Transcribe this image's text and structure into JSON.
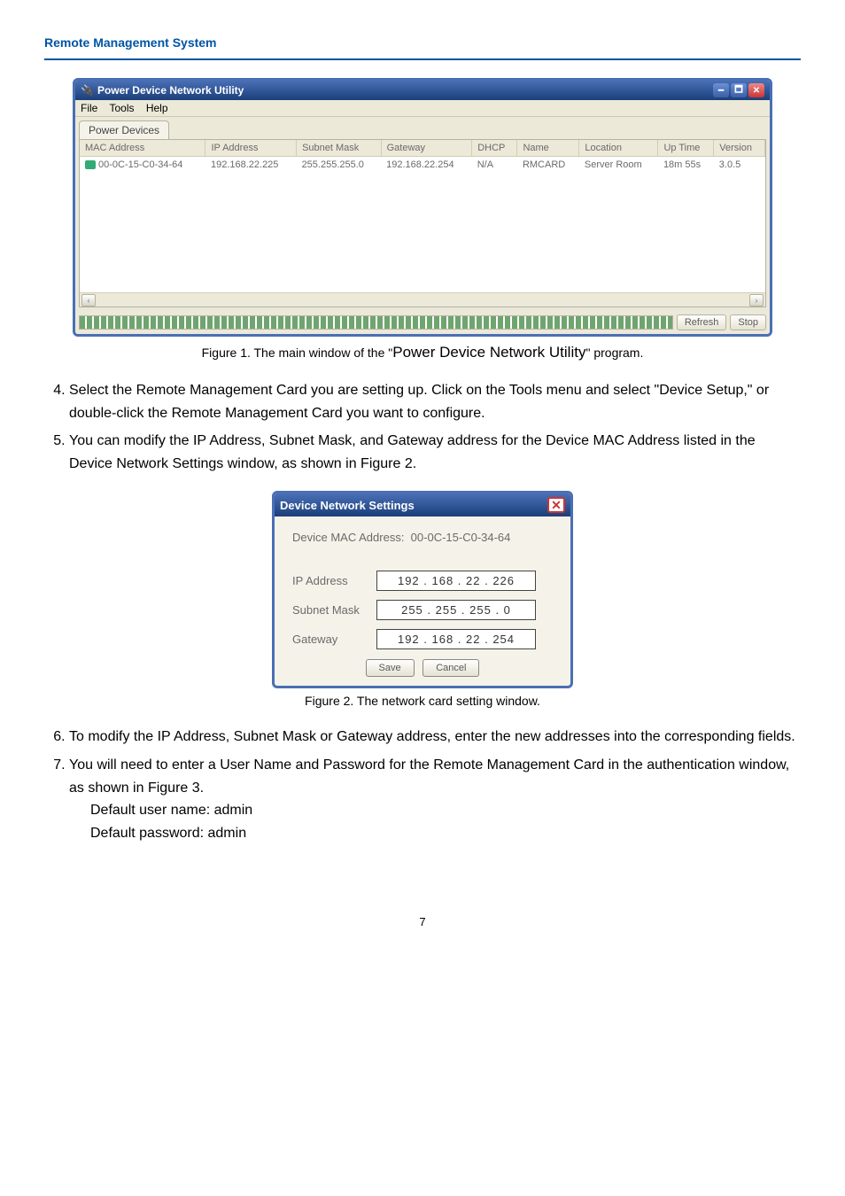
{
  "header": {
    "title": "Remote Management System"
  },
  "fig1": {
    "window_title": "Power Device Network Utility",
    "menu": [
      "File",
      "Tools",
      "Help"
    ],
    "tab": "Power Devices",
    "columns": [
      "MAC Address",
      "IP Address",
      "Subnet Mask",
      "Gateway",
      "DHCP",
      "Name",
      "Location",
      "Up Time",
      "Version"
    ],
    "row": {
      "mac": "00-0C-15-C0-34-64",
      "ip": "192.168.22.225",
      "mask": "255.255.255.0",
      "gw": "192.168.22.254",
      "dhcp": "N/A",
      "name": "RMCARD",
      "location": "Server Room",
      "uptime": "18m 55s",
      "version": "3.0.5"
    },
    "refresh": "Refresh",
    "stop": "Stop",
    "caption_pre": "Figure 1. The main window of the \"",
    "caption_mid": "Power Device Network Utility",
    "caption_post": "\" program."
  },
  "steps": {
    "s4a": "Select the Remote Management Card you are setting up. Click on the Tools menu and select \"Device Setup,\" or double-click the Remote Management Card you want to configure.",
    "s5a": "You can modify the IP Address, Subnet Mask, and Gateway address for the Device MAC Address listed in the Device Network Settings window, as shown in Figure 2.",
    "s6a": "To modify the IP Address, Subnet Mask or Gateway address, enter the new addresses into the corresponding fields.",
    "s7a": "You will need to enter a User Name and Password for the Remote Management Card   in the authentication window, as shown in Figure 3.",
    "s7b": "Default user name: admin",
    "s7c": "Default password: admin"
  },
  "fig2": {
    "title": "Device Network Settings",
    "mac_lbl": "Device MAC Address:",
    "mac": "00-0C-15-C0-34-64",
    "ip_lbl": "IP Address",
    "ip_val": "192 . 168 .  22  . 226",
    "mask_lbl": "Subnet Mask",
    "mask_val": "255 . 255 . 255 .   0",
    "gw_lbl": "Gateway",
    "gw_val": "192 . 168 .  22  . 254",
    "save": "Save",
    "cancel": "Cancel",
    "caption": "Figure 2. The network card setting window."
  },
  "footer": {
    "page": "7"
  }
}
